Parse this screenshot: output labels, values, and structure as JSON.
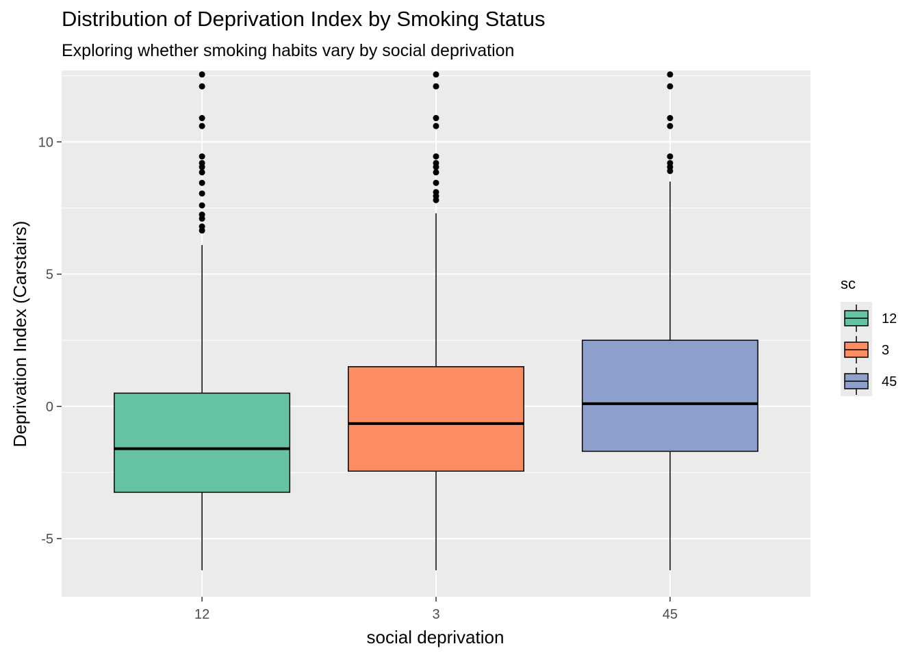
{
  "chart_data": {
    "type": "boxplot",
    "title": "Distribution of Deprivation Index by Smoking Status",
    "subtitle": "Exploring whether smoking habits vary by social deprivation",
    "xlabel": "social deprivation",
    "ylabel": "Deprivation Index (Carstairs)",
    "categories": [
      "12",
      "3",
      "45"
    ],
    "ylim": [
      -7.2,
      12.7
    ],
    "yticks": [
      -5,
      0,
      5,
      10
    ],
    "ytick_labels": [
      "-5",
      "0",
      "5",
      "10"
    ],
    "grid": true,
    "legend": {
      "title": "sc",
      "position": "right",
      "labels": [
        "12",
        "3",
        "45"
      ]
    },
    "colors": [
      "#66c2a5",
      "#fc8d62",
      "#8da0cb"
    ],
    "background": "#ebebeb",
    "series": [
      {
        "category": "12",
        "min": -6.2,
        "q1": -3.25,
        "median": -1.6,
        "q3": 0.5,
        "max": 6.1,
        "outliers": [
          6.65,
          6.8,
          7.1,
          7.25,
          7.6,
          8.05,
          8.45,
          8.85,
          9.05,
          9.2,
          9.45,
          10.6,
          10.9,
          12.1,
          12.55
        ]
      },
      {
        "category": "3",
        "min": -6.2,
        "q1": -2.45,
        "median": -0.65,
        "q3": 1.5,
        "max": 7.3,
        "outliers": [
          7.8,
          7.95,
          8.1,
          8.45,
          8.85,
          9.05,
          9.2,
          9.45,
          10.6,
          10.9,
          12.1,
          12.55
        ]
      },
      {
        "category": "45",
        "min": -6.2,
        "q1": -1.7,
        "median": 0.1,
        "q3": 2.5,
        "max": 8.5,
        "outliers": [
          8.9,
          9.05,
          9.2,
          9.45,
          10.6,
          10.9,
          12.1,
          12.55
        ]
      }
    ]
  }
}
